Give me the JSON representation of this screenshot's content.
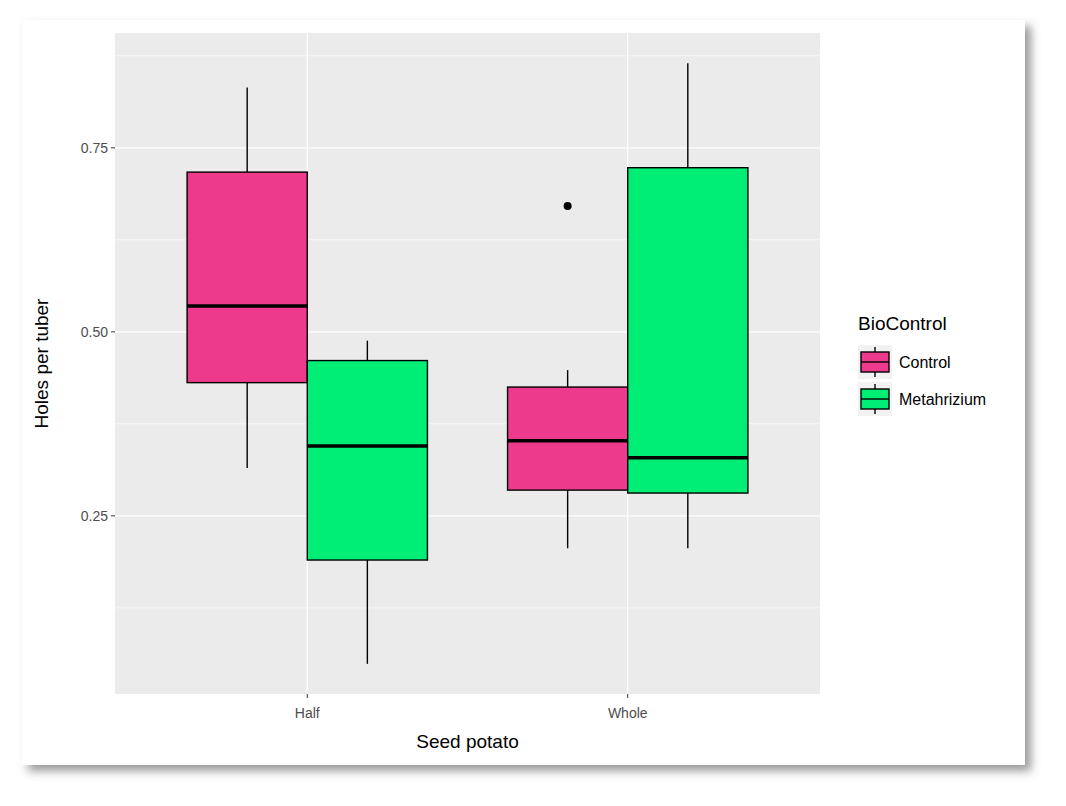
{
  "chart_data": {
    "type": "box",
    "x_label": "Seed potato",
    "y_label": "Holes per tuber",
    "categories": [
      "Half",
      "Whole"
    ],
    "legend_title": "BioControl",
    "series": [
      {
        "name": "Control",
        "color": "#EE3A8C",
        "values": [
          {
            "whisker_low": 0.315,
            "q1": 0.431,
            "median": 0.535,
            "q3": 0.717,
            "whisker_high": 0.832,
            "outliers": []
          },
          {
            "whisker_low": 0.206,
            "q1": 0.285,
            "median": 0.352,
            "q3": 0.425,
            "whisker_high": 0.448,
            "outliers": [
              0.671
            ]
          }
        ]
      },
      {
        "name": "Metahrizium",
        "color": "#00EE76",
        "values": [
          {
            "whisker_low": 0.049,
            "q1": 0.19,
            "median": 0.345,
            "q3": 0.461,
            "whisker_high": 0.488,
            "outliers": []
          },
          {
            "whisker_low": 0.206,
            "q1": 0.281,
            "median": 0.329,
            "q3": 0.723,
            "whisker_high": 0.865,
            "outliers": []
          }
        ]
      }
    ],
    "ylim": [
      0.008,
      0.906
    ],
    "yticks": [
      0.25,
      {
        "value": 0.5,
        "label": "0.50"
      },
      0.75
    ],
    "grid": true,
    "legend": "right"
  }
}
